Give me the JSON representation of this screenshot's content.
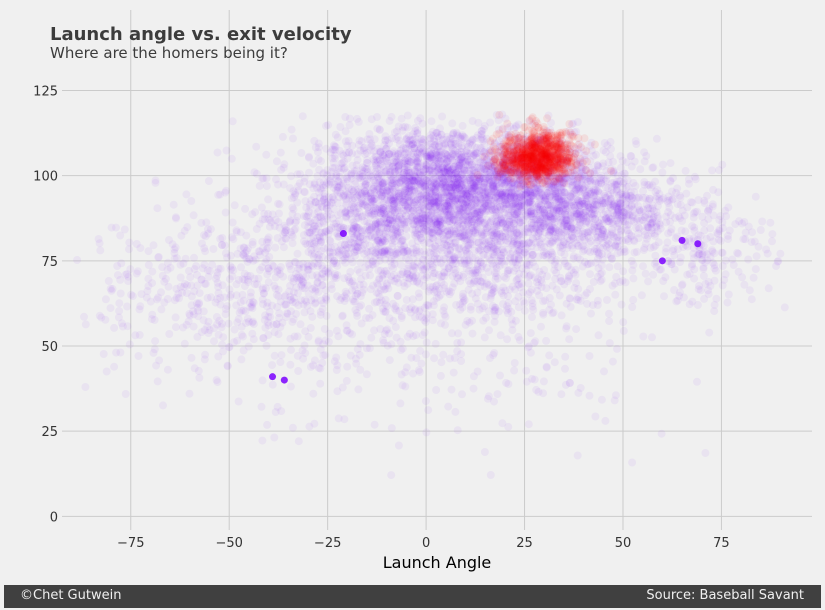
{
  "header": {
    "title": "Launch angle vs. exit velocity",
    "subtitle": "Where are the homers being it?"
  },
  "footer": {
    "credit": "©Chet Gutwein",
    "source": "Source: Baseball Savant"
  },
  "colors": {
    "background": "#f0f0f0",
    "grid": "#cbcbcb",
    "non_home_run": "#7a00ff",
    "home_run": "#ff0000",
    "footer_bg": "#404040",
    "footer_text": "#f0f0f0"
  },
  "chart_data": {
    "type": "scatter",
    "xlabel": "Launch Angle",
    "ylabel": "",
    "xlim": [
      -95,
      98
    ],
    "ylim": [
      -4,
      131
    ],
    "x_ticks": [
      -75,
      -50,
      -25,
      0,
      25,
      50,
      75
    ],
    "x_tick_labels": [
      "−75",
      "−50",
      "−25",
      "0",
      "25",
      "50",
      "75"
    ],
    "y_ticks": [
      0,
      25,
      50,
      75,
      100,
      125
    ],
    "y_tick_labels": [
      "0",
      "25",
      "50",
      "75",
      "100",
      "125"
    ],
    "grid": true,
    "series": [
      {
        "category": "non-home-run",
        "color": "#7a00ff",
        "alpha": 0.05,
        "clusters": [
          {
            "x": 5,
            "y": 97,
            "sx": 16,
            "sy": 9,
            "n": 2200
          },
          {
            "x": 28,
            "y": 94,
            "sx": 13,
            "sy": 8,
            "n": 900
          },
          {
            "x": 45,
            "y": 88,
            "sx": 10,
            "sy": 8,
            "n": 500
          },
          {
            "x": -12,
            "y": 86,
            "sx": 13,
            "sy": 11,
            "n": 650
          },
          {
            "x": -35,
            "y": 70,
            "sx": 16,
            "sy": 13,
            "n": 500
          },
          {
            "x": -65,
            "y": 62,
            "sx": 13,
            "sy": 13,
            "n": 180
          },
          {
            "x": 72,
            "y": 80,
            "sx": 8,
            "sy": 9,
            "n": 200
          },
          {
            "x": 15,
            "y": 75,
            "sx": 18,
            "sy": 10,
            "n": 700
          },
          {
            "x": 20,
            "y": 48,
            "sx": 22,
            "sy": 13,
            "n": 140
          },
          {
            "x": -20,
            "y": 45,
            "sx": 25,
            "sy": 12,
            "n": 80
          }
        ],
        "solid_points": [
          {
            "x": -39,
            "y": 41
          },
          {
            "x": -36,
            "y": 40
          },
          {
            "x": 69,
            "y": 80
          },
          {
            "x": -21,
            "y": 83
          },
          {
            "x": 60,
            "y": 75
          },
          {
            "x": 65,
            "y": 81
          }
        ]
      },
      {
        "category": "home-run",
        "color": "#ff0000",
        "alpha": 0.08,
        "clusters": [
          {
            "x": 28,
            "y": 105,
            "sx": 4.5,
            "sy": 3.2,
            "n": 900
          },
          {
            "x": 30,
            "y": 110,
            "sx": 6,
            "sy": 4,
            "n": 120
          }
        ]
      }
    ]
  }
}
